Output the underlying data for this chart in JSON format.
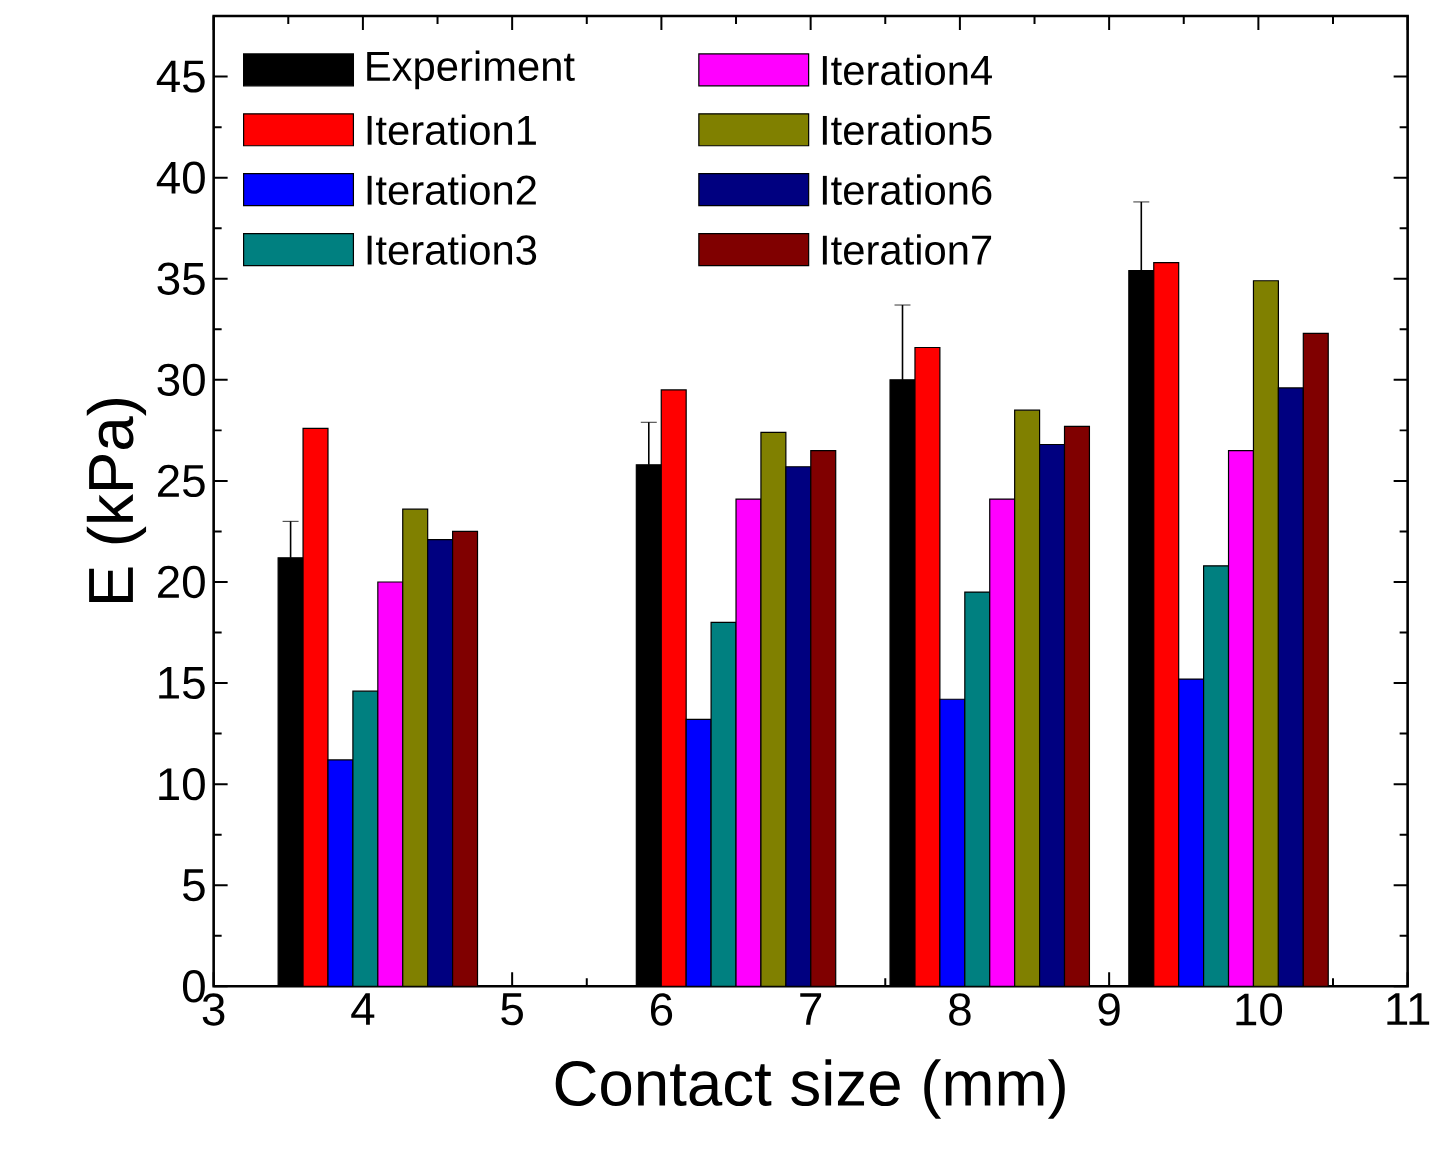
{
  "chart_data": {
    "type": "bar",
    "xlabel": "Contact size (mm)",
    "ylabel": "E (kPa)",
    "x": [
      4.1,
      6.5,
      8.2,
      9.8
    ],
    "series": [
      {
        "name": "Experiment",
        "color": "#000000",
        "values": [
          21.2,
          25.8,
          30.0,
          35.4
        ],
        "errors": [
          1.8,
          2.1,
          3.7,
          3.4
        ]
      },
      {
        "name": "Iteration1",
        "color": "#ff0000",
        "values": [
          27.6,
          29.5,
          31.6,
          35.8
        ]
      },
      {
        "name": "Iteration2",
        "color": "#0000ff",
        "values": [
          11.2,
          13.2,
          14.2,
          15.2
        ]
      },
      {
        "name": "Iteration3",
        "color": "#008080",
        "values": [
          14.6,
          18.0,
          19.5,
          20.8
        ]
      },
      {
        "name": "Iteration4",
        "color": "#ff00ff",
        "values": [
          20.0,
          24.1,
          24.1,
          26.5
        ]
      },
      {
        "name": "Iteration5",
        "color": "#808000",
        "values": [
          23.6,
          27.4,
          28.5,
          34.9
        ]
      },
      {
        "name": "Iteration6",
        "color": "#000080",
        "values": [
          22.1,
          25.7,
          26.8,
          29.6
        ]
      },
      {
        "name": "Iteration7",
        "color": "#800000",
        "values": [
          22.5,
          26.5,
          27.7,
          32.3
        ]
      }
    ],
    "xlim": [
      3,
      11
    ],
    "ylim": [
      0,
      48
    ],
    "xticks": [
      3,
      4,
      5,
      6,
      7,
      8,
      9,
      10,
      11
    ],
    "yticks": [
      0,
      5,
      10,
      15,
      20,
      25,
      30,
      35,
      40,
      45
    ],
    "legend": "top left"
  }
}
